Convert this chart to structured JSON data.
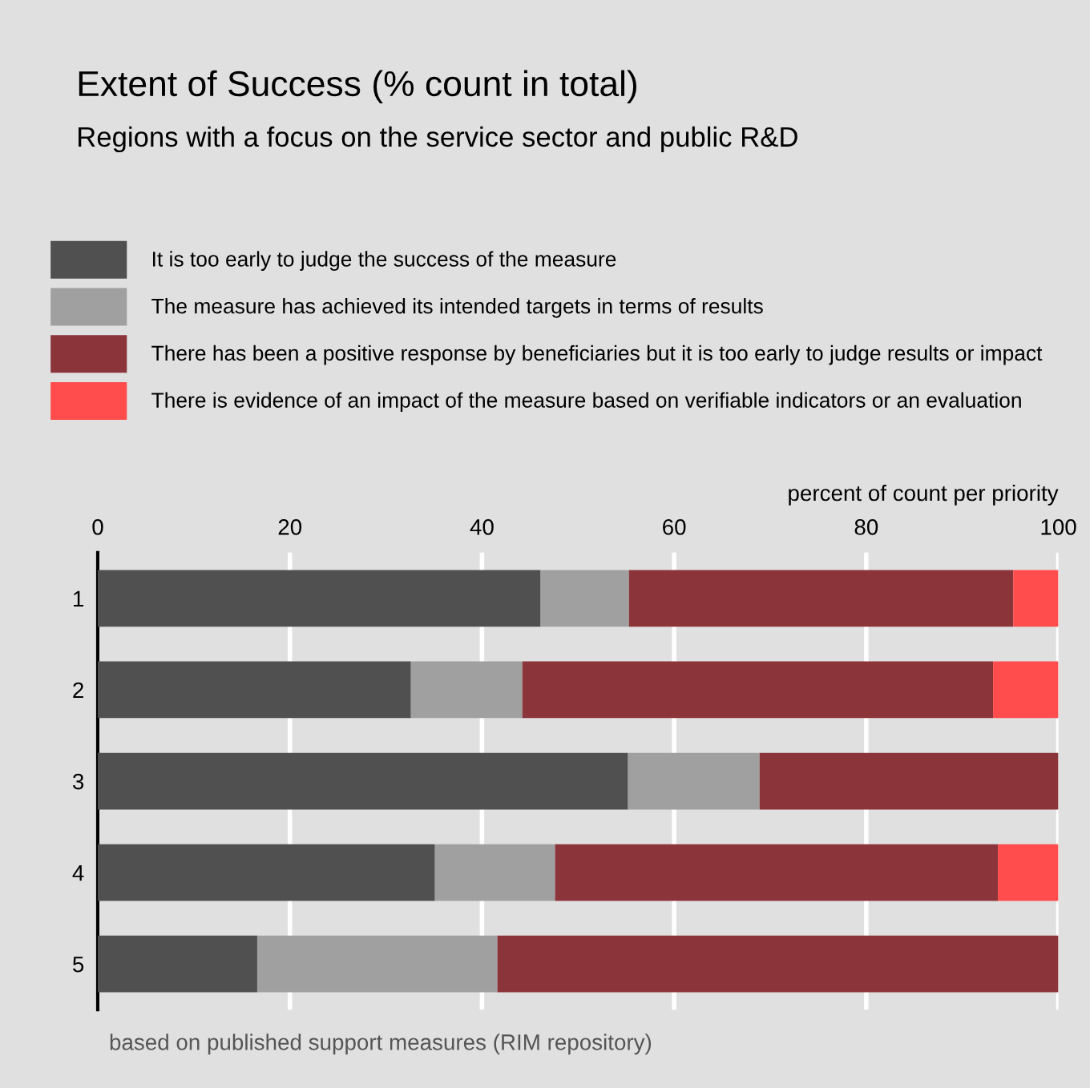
{
  "chart_data": {
    "type": "bar",
    "orientation": "horizontal",
    "stacked": true,
    "title": "Extent of Success (% count in total)",
    "subtitle": "Regions with a focus on the service sector and public R&D",
    "xlabel": "percent of count per priority",
    "categories": [
      "1",
      "2",
      "3",
      "4",
      "5"
    ],
    "series": [
      {
        "name": "It is too early to judge the success of the measure",
        "color": "#505050",
        "values": [
          46.1,
          32.6,
          55.2,
          35.1,
          16.6
        ]
      },
      {
        "name": "The measure has achieved its intended targets in terms of results",
        "color": "#a0a0a0",
        "values": [
          9.2,
          11.6,
          13.7,
          12.5,
          25.0
        ]
      },
      {
        "name": "There has been a positive response by beneficiaries but it is too early to judge results or impact",
        "color": "#8b353b",
        "values": [
          40.0,
          49.0,
          31.1,
          46.1,
          58.4
        ]
      },
      {
        "name": "There is evidence of an impact of the measure based on verifiable indicators or an evaluation",
        "color": "#ff4d4d",
        "values": [
          4.7,
          6.8,
          null,
          6.3,
          null
        ]
      }
    ],
    "xlim": [
      0,
      100
    ],
    "xticks": [
      0,
      20,
      40,
      60,
      80,
      100
    ],
    "grid": "x",
    "legend": "top",
    "annotations": [
      "based on published support measures (RIM repository)"
    ]
  }
}
